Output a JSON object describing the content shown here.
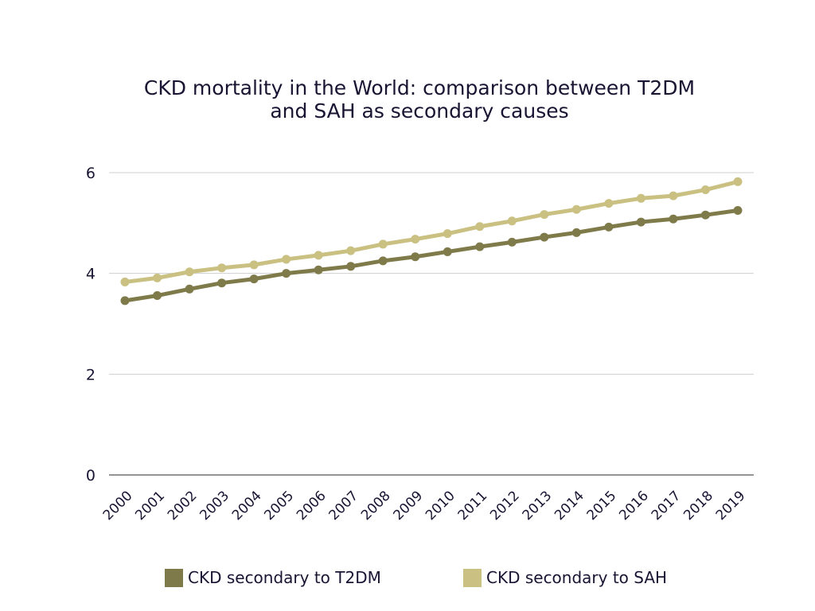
{
  "chart_data": {
    "type": "line",
    "title_lines": [
      "CKD mortality in the World: comparison between T2DM",
      "and SAH as secondary causes"
    ],
    "categories": [
      "2000",
      "2001",
      "2002",
      "2003",
      "2004",
      "2005",
      "2006",
      "2007",
      "2008",
      "2009",
      "2010",
      "2011",
      "2012",
      "2013",
      "2014",
      "2015",
      "2016",
      "2017",
      "2018",
      "2019"
    ],
    "series": [
      {
        "name": "CKD secondary to T2DM",
        "color": "#7f7a4a",
        "values": [
          3.46,
          3.56,
          3.69,
          3.81,
          3.89,
          4.0,
          4.07,
          4.14,
          4.25,
          4.33,
          4.43,
          4.53,
          4.62,
          4.72,
          4.81,
          4.92,
          5.02,
          5.08,
          5.16,
          5.25
        ]
      },
      {
        "name": "CKD secondary to SAH",
        "color": "#c9c082",
        "values": [
          3.83,
          3.91,
          4.03,
          4.11,
          4.17,
          4.28,
          4.36,
          4.45,
          4.58,
          4.68,
          4.79,
          4.93,
          5.04,
          5.17,
          5.27,
          5.39,
          5.49,
          5.54,
          5.66,
          5.82
        ]
      }
    ],
    "y_ticks": [
      "0",
      "2",
      "4",
      "6"
    ],
    "ylim": [
      0,
      6
    ],
    "grid": true,
    "legend_position": "bottom"
  }
}
